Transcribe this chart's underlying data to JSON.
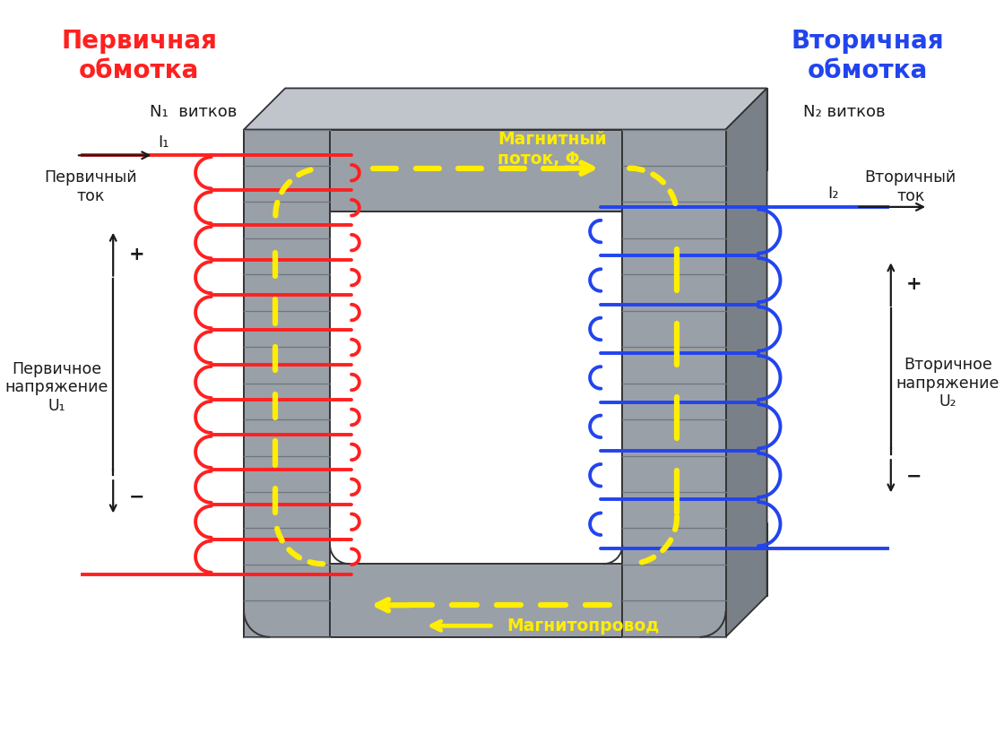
{
  "bg_color": "#ffffff",
  "core_color": "#9aa0a8",
  "core_dark": "#7a8088",
  "core_shadow": "#6a7078",
  "core_light": "#c0c5cb",
  "core_inner_shadow": "#8a9098",
  "primary_color": "#ff2020",
  "secondary_color": "#2244ee",
  "flux_color": "#ffee00",
  "text_color": "#1a1a1a",
  "title_primary_color": "#ff2020",
  "title_secondary_color": "#2244ee",
  "title_primary": "Первичная\nобмотка",
  "title_secondary": "Вторичная\nобмотка",
  "n1_label": "N₁  витков",
  "n2_label": "N₂ витков",
  "primary_current_label": "Первичный\nток",
  "secondary_current_label": "Вторичный\nток",
  "I1_label": "I₁",
  "I2_label": "I₂",
  "primary_voltage_label": "Первичное\nнапряжение\nU₁",
  "secondary_voltage_label": "Вторичное\nнапряжение\nU₂",
  "flux_label": "Магнитный\nпоток, Φ",
  "core_label": "Магнитопровод"
}
